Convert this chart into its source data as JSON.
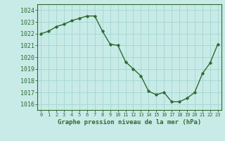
{
  "x": [
    0,
    1,
    2,
    3,
    4,
    5,
    6,
    7,
    8,
    9,
    10,
    11,
    12,
    13,
    14,
    15,
    16,
    17,
    18,
    19,
    20,
    21,
    22,
    23
  ],
  "y": [
    1022.0,
    1022.2,
    1022.6,
    1022.8,
    1023.1,
    1023.3,
    1023.5,
    1023.5,
    1022.2,
    1021.1,
    1021.0,
    1019.6,
    1019.0,
    1018.4,
    1017.1,
    1016.8,
    1017.0,
    1016.2,
    1016.2,
    1016.5,
    1017.0,
    1018.6,
    1019.5,
    1021.1
  ],
  "line_color": "#2d6a2d",
  "marker_color": "#2d6a2d",
  "bg_color": "#c8ebe8",
  "grid_color": "#a8d8d4",
  "xlabel": "Graphe pression niveau de la mer (hPa)",
  "xlabel_color": "#2d6a2d",
  "ylim": [
    1015.5,
    1024.5
  ],
  "yticks": [
    1016,
    1017,
    1018,
    1019,
    1020,
    1021,
    1022,
    1023,
    1024
  ],
  "xticks": [
    0,
    1,
    2,
    3,
    4,
    5,
    6,
    7,
    8,
    9,
    10,
    11,
    12,
    13,
    14,
    15,
    16,
    17,
    18,
    19,
    20,
    21,
    22,
    23
  ],
  "tick_color": "#2d6a2d",
  "spine_color": "#2d6a2d",
  "fig_width": 3.2,
  "fig_height": 2.0,
  "dpi": 100
}
